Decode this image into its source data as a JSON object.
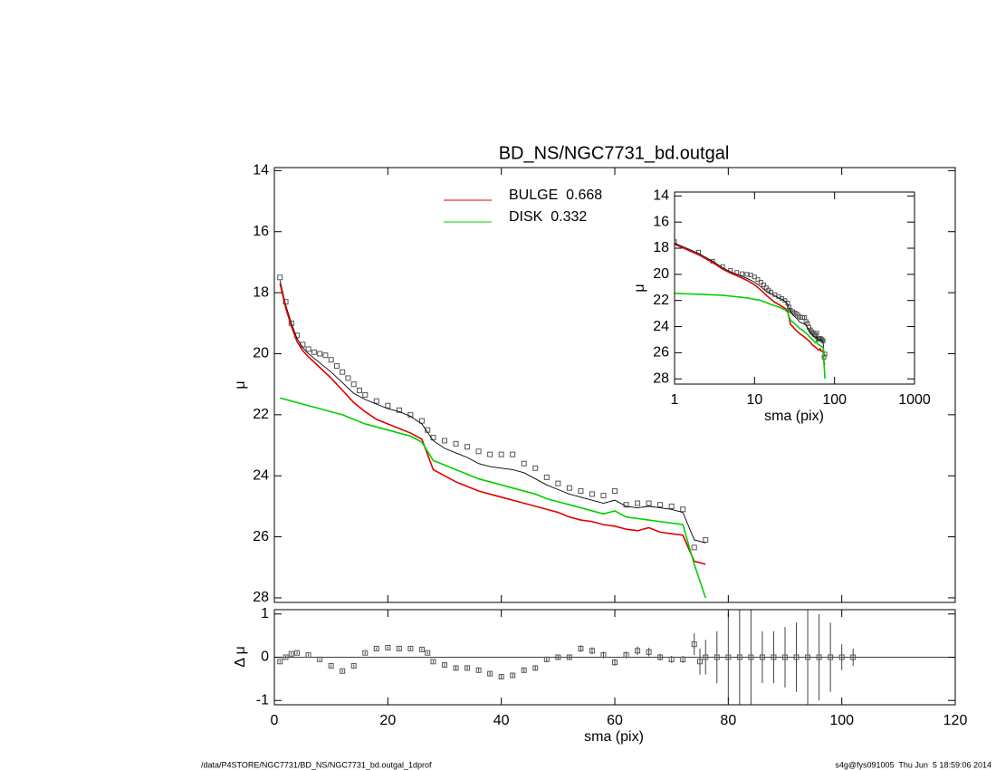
{
  "chart_data": {
    "type": "line",
    "title": "BD_NS/NGC7731_bd.outgal",
    "xlabel": "sma (pix)",
    "ylabel": "μ",
    "xlim": [
      0,
      120
    ],
    "ylim": [
      13.9,
      28.15
    ],
    "y_reversed": true,
    "xticks": [
      0,
      20,
      40,
      60,
      80,
      100,
      120
    ],
    "yticks": [
      14,
      16,
      18,
      20,
      22,
      24,
      26,
      28
    ],
    "series": [
      {
        "style": "markers",
        "color": "#555555",
        "x": [
          1,
          2,
          3,
          4,
          5,
          6,
          7,
          8,
          9,
          10,
          11,
          12,
          13,
          14,
          15,
          16,
          18,
          20,
          22,
          24,
          26,
          27,
          28,
          30,
          32,
          34,
          36,
          38,
          40,
          42,
          44,
          46,
          48,
          50,
          52,
          54,
          56,
          58,
          60,
          62,
          64,
          66,
          68,
          70,
          72,
          74,
          76
        ],
        "values": [
          17.5,
          18.3,
          19.0,
          19.4,
          19.7,
          19.85,
          19.95,
          20.0,
          20.05,
          20.2,
          20.4,
          20.6,
          20.8,
          21.0,
          21.2,
          21.35,
          21.55,
          21.7,
          21.85,
          22.0,
          22.2,
          22.5,
          22.75,
          22.85,
          22.95,
          23.05,
          23.2,
          23.3,
          23.3,
          23.3,
          23.6,
          23.75,
          24.05,
          24.25,
          24.4,
          24.5,
          24.6,
          24.65,
          24.5,
          24.95,
          24.9,
          24.9,
          24.95,
          25.0,
          25.1,
          26.35,
          26.1
        ]
      },
      {
        "style": "line",
        "color": "#000000",
        "x": [
          1,
          2,
          3,
          4,
          5,
          6,
          8,
          10,
          12,
          14,
          16,
          18,
          20,
          22,
          24,
          26,
          28,
          30,
          32,
          34,
          36,
          38,
          40,
          42,
          44,
          46,
          48,
          50,
          52,
          54,
          56,
          58,
          60,
          62,
          64,
          66,
          68,
          70,
          72,
          74,
          76
        ],
        "values": [
          17.6,
          18.4,
          19.0,
          19.5,
          19.8,
          20.0,
          20.3,
          20.6,
          20.95,
          21.3,
          21.5,
          21.65,
          21.8,
          21.9,
          22.05,
          22.3,
          22.85,
          23.1,
          23.25,
          23.4,
          23.6,
          23.7,
          23.75,
          23.8,
          23.9,
          24.1,
          24.3,
          24.45,
          24.6,
          24.7,
          24.8,
          24.9,
          24.8,
          25.0,
          25.05,
          25.0,
          25.05,
          25.1,
          25.2,
          26.1,
          26.2
        ]
      },
      {
        "name": "BULGE  0.668",
        "style": "line",
        "color": "#e00000",
        "x": [
          1,
          2,
          3,
          4,
          5,
          6,
          8,
          10,
          12,
          14,
          16,
          18,
          20,
          22,
          24,
          26,
          28,
          30,
          32,
          34,
          36,
          38,
          40,
          42,
          44,
          46,
          48,
          50,
          52,
          54,
          56,
          58,
          60,
          62,
          64,
          66,
          68,
          70,
          72,
          74,
          76
        ],
        "values": [
          17.7,
          18.5,
          19.1,
          19.6,
          19.9,
          20.1,
          20.45,
          20.8,
          21.2,
          21.6,
          21.9,
          22.15,
          22.3,
          22.45,
          22.6,
          22.8,
          23.8,
          24.0,
          24.2,
          24.35,
          24.5,
          24.6,
          24.7,
          24.8,
          24.9,
          25.0,
          25.1,
          25.2,
          25.35,
          25.45,
          25.5,
          25.6,
          25.65,
          25.75,
          25.8,
          25.7,
          25.85,
          25.9,
          25.95,
          26.8,
          26.9
        ]
      },
      {
        "name": "DISK  0.332",
        "style": "line",
        "color": "#00d000",
        "x": [
          1,
          4,
          8,
          12,
          16,
          20,
          24,
          26,
          28,
          30,
          32,
          34,
          36,
          38,
          40,
          42,
          44,
          46,
          48,
          50,
          52,
          54,
          56,
          58,
          60,
          62,
          64,
          66,
          68,
          70,
          72,
          74,
          76
        ],
        "values": [
          21.45,
          21.6,
          21.8,
          22.0,
          22.3,
          22.5,
          22.7,
          22.9,
          23.5,
          23.65,
          23.8,
          23.95,
          24.1,
          24.2,
          24.3,
          24.4,
          24.5,
          24.6,
          24.75,
          24.85,
          24.95,
          25.05,
          25.15,
          25.25,
          25.15,
          25.35,
          25.4,
          25.45,
          25.5,
          25.55,
          25.6,
          26.9,
          28.0
        ]
      }
    ],
    "residual": {
      "ylabel": "Δ μ",
      "ylim": [
        -1.1,
        1.1
      ],
      "yticks": [
        -1,
        0,
        1
      ],
      "x": [
        1,
        2,
        3,
        4,
        6,
        8,
        10,
        12,
        14,
        16,
        18,
        20,
        22,
        24,
        26,
        27,
        28,
        30,
        32,
        34,
        36,
        38,
        40,
        42,
        44,
        46,
        48,
        50,
        52,
        54,
        56,
        58,
        60,
        62,
        64,
        66,
        68,
        70,
        72,
        74,
        75,
        76,
        78,
        80,
        82,
        84,
        86,
        88,
        90,
        92,
        94,
        96,
        98,
        100,
        102
      ],
      "values": [
        -0.1,
        0.0,
        0.08,
        0.1,
        0.05,
        -0.05,
        -0.2,
        -0.32,
        -0.2,
        0.1,
        0.2,
        0.22,
        0.2,
        0.2,
        0.18,
        0.1,
        -0.1,
        -0.18,
        -0.25,
        -0.25,
        -0.3,
        -0.38,
        -0.45,
        -0.42,
        -0.3,
        -0.25,
        -0.05,
        0.0,
        0.0,
        0.2,
        0.15,
        0.05,
        -0.12,
        0.05,
        0.15,
        0.12,
        0.0,
        -0.05,
        -0.05,
        0.3,
        -0.1,
        0.0,
        0,
        0,
        0,
        0,
        0,
        0,
        0,
        0,
        0,
        0,
        0,
        0,
        0
      ],
      "errors": [
        0.03,
        0.03,
        0.03,
        0.03,
        0.03,
        0.03,
        0.03,
        0.03,
        0.03,
        0.03,
        0.03,
        0.03,
        0.03,
        0.03,
        0.03,
        0.03,
        0.03,
        0.04,
        0.04,
        0.04,
        0.04,
        0.04,
        0.04,
        0.05,
        0.05,
        0.05,
        0.05,
        0.06,
        0.06,
        0.08,
        0.08,
        0.08,
        0.08,
        0.08,
        0.1,
        0.1,
        0.08,
        0.08,
        0.08,
        0.25,
        0.3,
        0.4,
        0.6,
        1.0,
        1.2,
        1.2,
        0.6,
        0.6,
        0.7,
        0.8,
        1.2,
        1.0,
        0.8,
        0.3,
        0.2
      ]
    },
    "inset": {
      "xlabel": "sma (pix)",
      "ylabel": "μ",
      "xscale": "log",
      "xlim": [
        1,
        1000
      ],
      "ylim": [
        13.7,
        28.4
      ],
      "xticks": [
        1,
        10,
        100,
        1000
      ],
      "yticks": [
        14,
        16,
        18,
        20,
        22,
        24,
        26,
        28
      ]
    },
    "footer": {
      "left": "/data/P4STORE/NGC7731/BD_NS/NGC7731_bd.outgal_1dprof",
      "right": "s4g@fys091005  Thu Jun  5 18:59:06 2014"
    }
  }
}
